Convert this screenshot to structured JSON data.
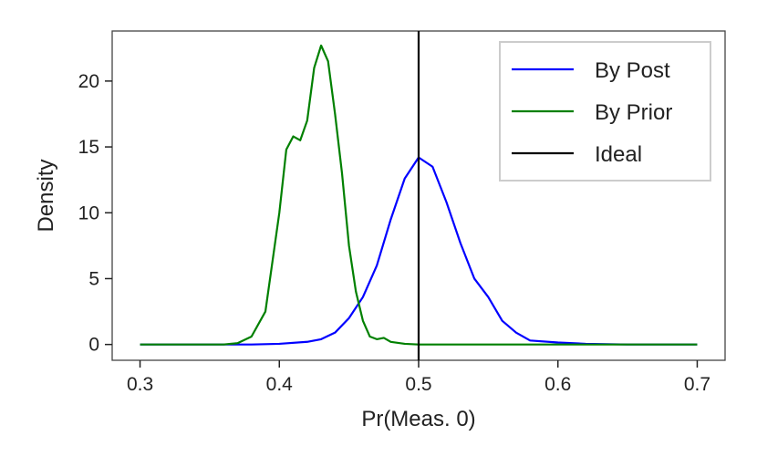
{
  "chart_data": {
    "type": "line",
    "title": "",
    "xlabel": "Pr(Meas. 0)",
    "ylabel": "Density",
    "xlim": [
      0.28,
      0.72
    ],
    "ylim": [
      -1.2,
      23.8
    ],
    "xticks": [
      0.3,
      0.4,
      0.5,
      0.6,
      0.7
    ],
    "xtick_labels": [
      "0.3",
      "0.4",
      "0.5",
      "0.6",
      "0.7"
    ],
    "yticks": [
      0,
      5,
      10,
      15,
      20
    ],
    "ytick_labels": [
      "0",
      "5",
      "10",
      "15",
      "20"
    ],
    "grid": false,
    "legend_position": "top-right",
    "series": [
      {
        "name": "By Post",
        "color": "#0000ff",
        "points": [
          [
            0.3,
            0
          ],
          [
            0.38,
            0
          ],
          [
            0.4,
            0.05
          ],
          [
            0.42,
            0.2
          ],
          [
            0.43,
            0.4
          ],
          [
            0.44,
            0.9
          ],
          [
            0.45,
            2.0
          ],
          [
            0.46,
            3.6
          ],
          [
            0.47,
            6.0
          ],
          [
            0.48,
            9.5
          ],
          [
            0.49,
            12.6
          ],
          [
            0.5,
            14.2
          ],
          [
            0.51,
            13.5
          ],
          [
            0.52,
            10.8
          ],
          [
            0.53,
            7.7
          ],
          [
            0.54,
            5.0
          ],
          [
            0.55,
            3.6
          ],
          [
            0.56,
            1.8
          ],
          [
            0.57,
            0.9
          ],
          [
            0.58,
            0.3
          ],
          [
            0.6,
            0.15
          ],
          [
            0.62,
            0.05
          ],
          [
            0.65,
            0
          ],
          [
            0.7,
            0
          ]
        ]
      },
      {
        "name": "By Prior",
        "color": "#008000",
        "points": [
          [
            0.3,
            0
          ],
          [
            0.36,
            0
          ],
          [
            0.37,
            0.1
          ],
          [
            0.38,
            0.6
          ],
          [
            0.39,
            2.5
          ],
          [
            0.4,
            10.0
          ],
          [
            0.405,
            14.8
          ],
          [
            0.41,
            15.8
          ],
          [
            0.415,
            15.5
          ],
          [
            0.42,
            17.0
          ],
          [
            0.425,
            21.0
          ],
          [
            0.43,
            22.7
          ],
          [
            0.435,
            21.5
          ],
          [
            0.44,
            17.5
          ],
          [
            0.445,
            13.0
          ],
          [
            0.45,
            7.5
          ],
          [
            0.455,
            4.0
          ],
          [
            0.46,
            1.8
          ],
          [
            0.465,
            0.6
          ],
          [
            0.47,
            0.4
          ],
          [
            0.475,
            0.5
          ],
          [
            0.48,
            0.2
          ],
          [
            0.49,
            0.05
          ],
          [
            0.5,
            0
          ],
          [
            0.7,
            0
          ]
        ]
      }
    ],
    "reference_lines": [
      {
        "name": "Ideal",
        "type": "vertical",
        "x": 0.5,
        "color": "#000000"
      }
    ]
  }
}
